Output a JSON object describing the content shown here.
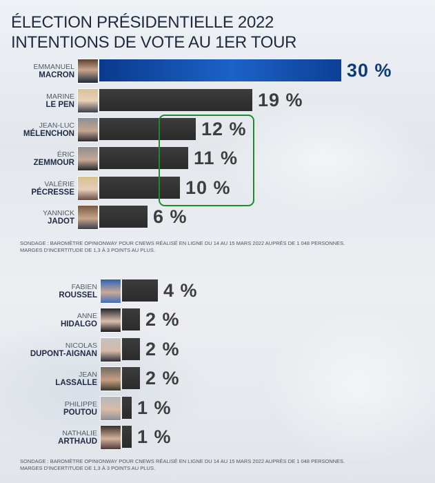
{
  "title_line1": "ÉLECTION PRÉSIDENTIELLE 2022",
  "title_line2": "INTENTIONS DE VOTE AU 1ER TOUR",
  "notes": {
    "top_line1": "SONDAGE : BAROMÈTRE OPINIONWAY POUR CNEWS RÉALISÉ EN LIGNE DU 14 AU 15 MARS 2022 AUPRÈS DE 1 048 PERSONNES.",
    "top_line2": "MARGES D'INCERTITUDE DE 1,3 À 3 POINTS AU PLUS.",
    "bottom_line1": "SONDAGE : BAROMÈTRE OPINIONWAY POUR CNEWS RÉALISÉ EN LIGNE DU 14 AU 15 MARS 2022 AUPRÈS DE 1 048 PERSONNES.",
    "bottom_line2": "MARGES D'INCERTITUDE DE 1,3 À 3 POINTS AU PLUS."
  },
  "colors": {
    "accent": "#1c62c9",
    "bar": "#2f2f2f",
    "highlight": "#1e8a2e",
    "pct_first": "#0e3a78"
  },
  "chart_data": {
    "type": "bar",
    "title": "ÉLECTION PRÉSIDENTIELLE 2022 — INTENTIONS DE VOTE AU 1ER TOUR",
    "unit": "%",
    "highlighted": [
      "JEAN-LUC MÉLENCHON",
      "ÉRIC ZEMMOUR",
      "VALÉRIE PÉCRESSE"
    ],
    "series": [
      {
        "first": "EMMANUEL",
        "last": "MACRON",
        "value": 30,
        "label": "30 %"
      },
      {
        "first": "MARINE",
        "last": "LE PEN",
        "value": 19,
        "label": "19 %"
      },
      {
        "first": "JEAN-LUC",
        "last": "MÉLENCHON",
        "value": 12,
        "label": "12 %"
      },
      {
        "first": "ÉRIC",
        "last": "ZEMMOUR",
        "value": 11,
        "label": "11 %"
      },
      {
        "first": "VALÉRIE",
        "last": "PÉCRESSE",
        "value": 10,
        "label": "10 %"
      },
      {
        "first": "YANNICK",
        "last": "JADOT",
        "value": 6,
        "label": "6 %"
      },
      {
        "first": "FABIEN",
        "last": "ROUSSEL",
        "value": 4,
        "label": "4 %"
      },
      {
        "first": "ANNE",
        "last": "HIDALGO",
        "value": 2,
        "label": "2 %"
      },
      {
        "first": "NICOLAS",
        "last": "DUPONT-AIGNAN",
        "value": 2,
        "label": "2 %"
      },
      {
        "first": "JEAN",
        "last": "LASSALLE",
        "value": 2,
        "label": "2 %"
      },
      {
        "first": "PHILIPPE",
        "last": "POUTOU",
        "value": 1,
        "label": "1 %"
      },
      {
        "first": "NATHALIE",
        "last": "ARTHAUD",
        "value": 1,
        "label": "1 %"
      }
    ]
  }
}
